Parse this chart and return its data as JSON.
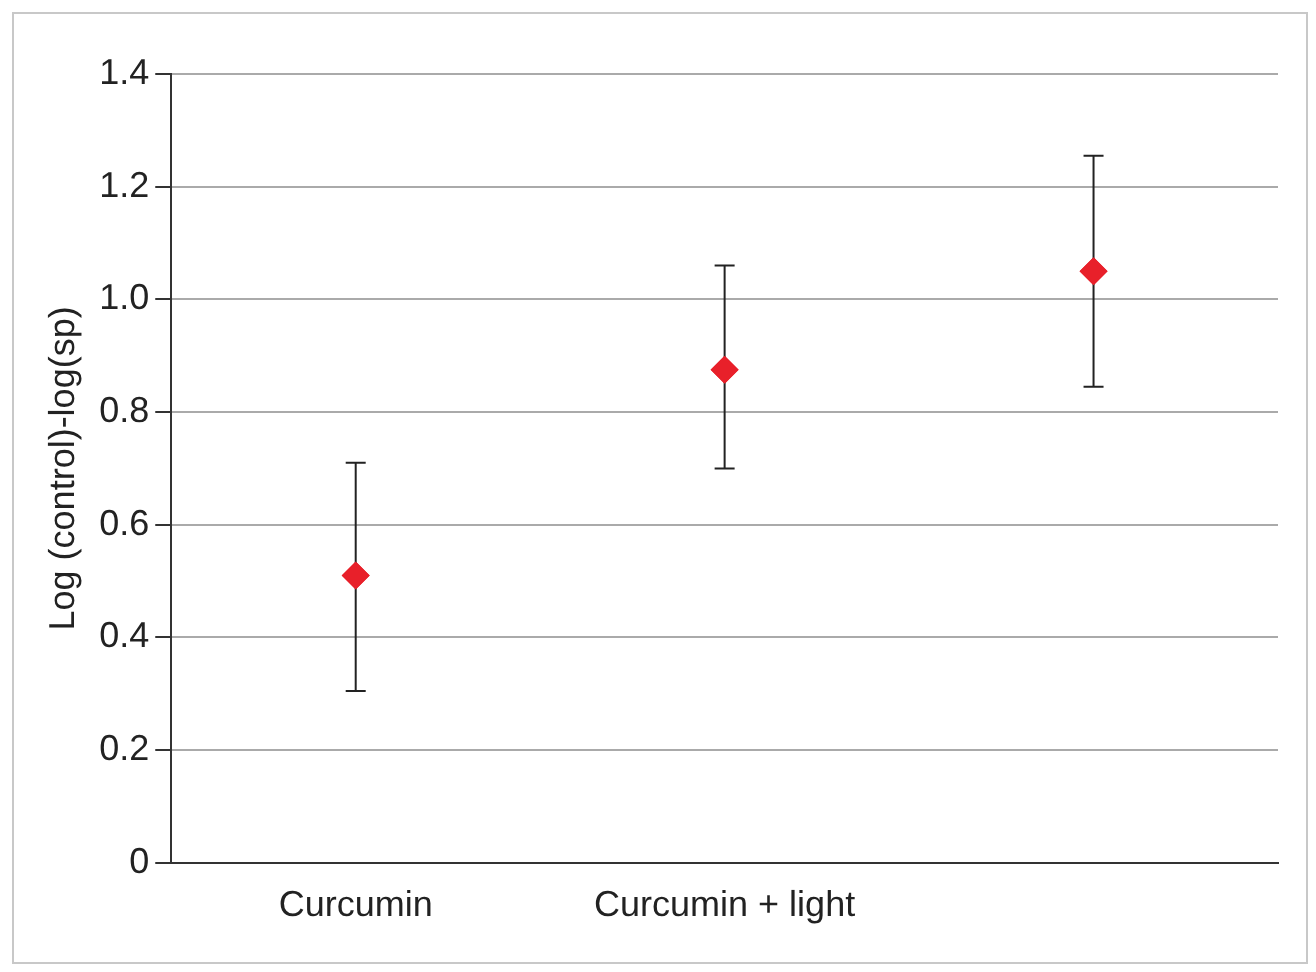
{
  "chart_data": {
    "type": "scatter",
    "ylabel": "Log (control)-log(sp)",
    "categories": [
      "Curcumin",
      "Curcumin + light",
      null
    ],
    "values": [
      0.51,
      0.875,
      1.05
    ],
    "errors": [
      [
        0.305,
        0.71
      ],
      [
        0.7,
        1.06
      ],
      [
        0.845,
        1.255
      ]
    ],
    "color": "#e8202a",
    "marker": "diamond",
    "ylim": [
      0,
      1.4
    ],
    "yticks": [
      0,
      {
        "value": 0.2,
        "label": "0.2"
      },
      {
        "value": 0.4,
        "label": "0.4"
      },
      {
        "value": 0.6,
        "label": "0.6"
      },
      {
        "value": 0.8,
        "label": "0.8"
      },
      {
        "value": 1,
        "label": "1.0"
      },
      {
        "value": 1.2,
        "label": "1.2"
      },
      {
        "value": 1.4,
        "label": "1.4"
      }
    ],
    "grid": "y"
  }
}
